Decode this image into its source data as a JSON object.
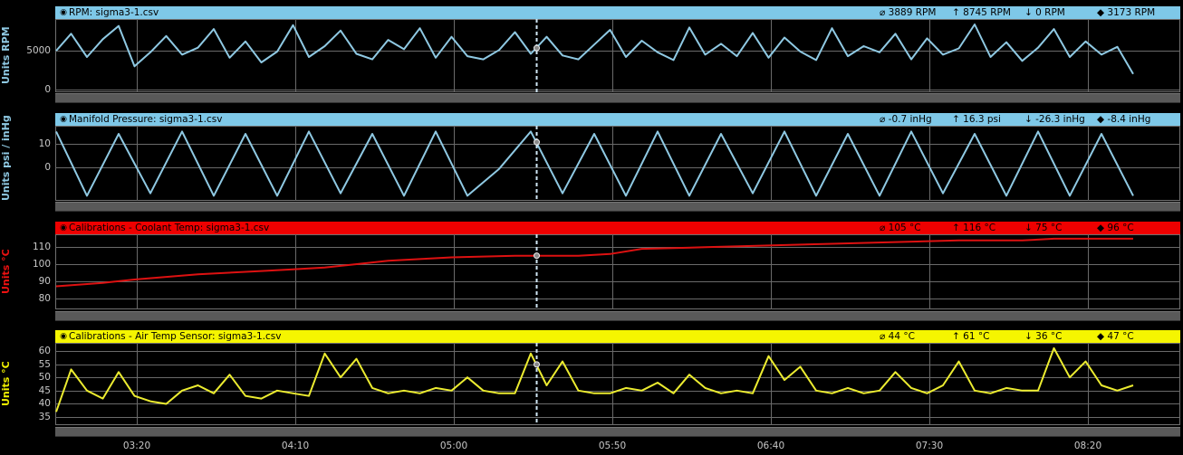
{
  "panels": [
    {
      "id": "rpm",
      "title": "RPM: sigma3-1.csv",
      "header_color": "#7ec8e8",
      "line_color": "#8fc9e3",
      "ylabel": "Units RPM",
      "ylabel_color": "#8fc9e3",
      "stats": [
        "3889 RPM",
        "8745 RPM",
        "0 RPM",
        "3173 RPM"
      ]
    },
    {
      "id": "manifold",
      "title": "Manifold Pressure: sigma3-1.csv",
      "header_color": "#7ec8e8",
      "line_color": "#8fc9e3",
      "ylabel": "Units psi / inHg",
      "ylabel_color": "#8fc9e3",
      "stats": [
        "-0.7 inHg",
        "16.3 psi",
        "-26.3 inHg",
        "-8.4 inHg"
      ]
    },
    {
      "id": "coolant",
      "title": "Calibrations - Coolant Temp: sigma3-1.csv",
      "header_color": "#ee0000",
      "line_color": "#dd1111",
      "ylabel": "Units °C",
      "ylabel_color": "#ee1111",
      "stats": [
        "105 °C",
        "116 °C",
        "75 °C",
        "96 °C"
      ]
    },
    {
      "id": "airtemp",
      "title": "Calibrations - Air Temp Sensor: sigma3-1.csv",
      "header_color": "#f5f500",
      "line_color": "#ecec30",
      "ylabel": "Units °C",
      "ylabel_color": "#f0f000",
      "stats": [
        "44 °C",
        "61 °C",
        "36 °C",
        "47 °C"
      ]
    }
  ],
  "x_ticks": [
    "03:20",
    "04:10",
    "05:00",
    "05:50",
    "06:40",
    "07:30",
    "08:20"
  ],
  "chart_data": [
    {
      "type": "line",
      "title": "RPM: sigma3-1.csv",
      "ylabel": "Units RPM",
      "y_ticks": [
        0,
        5000
      ],
      "ylim": [
        0,
        8745
      ],
      "x": [
        "02:55",
        "03:00",
        "03:05",
        "03:10",
        "03:15",
        "03:20",
        "03:25",
        "03:30",
        "03:35",
        "03:40",
        "03:45",
        "03:50",
        "03:55",
        "04:00",
        "04:05",
        "04:10",
        "04:15",
        "04:20",
        "04:25",
        "04:30",
        "04:35",
        "04:40",
        "04:45",
        "04:50",
        "04:55",
        "05:00",
        "05:05",
        "05:10",
        "05:15",
        "05:20",
        "05:25",
        "05:30",
        "05:35",
        "05:40",
        "05:45",
        "05:50",
        "05:55",
        "06:00",
        "06:05",
        "06:10",
        "06:15",
        "06:20",
        "06:25",
        "06:30",
        "06:35",
        "06:40",
        "06:45",
        "06:50",
        "06:55",
        "07:00",
        "07:05",
        "07:10",
        "07:15",
        "07:20",
        "07:25",
        "07:30",
        "07:35",
        "07:40",
        "07:45",
        "07:50",
        "07:55",
        "08:00",
        "08:05",
        "08:10",
        "08:15",
        "08:20",
        "08:25",
        "08:30",
        "08:35"
      ],
      "series": [
        {
          "values": [
            5000,
            7200,
            4200,
            6500,
            8200,
            3000,
            4800,
            6900,
            4500,
            5400,
            7800,
            4100,
            6200,
            3500,
            4900,
            8300,
            4200,
            5600,
            7600,
            4600,
            3900,
            6400,
            5200,
            7900,
            4100,
            6800,
            4300,
            3889,
            5100,
            7400,
            4600,
            6800,
            4400,
            3900,
            5800,
            7700,
            4200,
            6300,
            4800,
            3800,
            8000,
            4500,
            5900,
            4300,
            7300,
            4100,
            6700,
            4900,
            3800,
            7900,
            4300,
            5600,
            4800,
            7200,
            3900,
            6600,
            4500,
            5300,
            8400,
            4200,
            6100,
            3700,
            5400,
            7800,
            4200,
            6200,
            4500,
            5500,
            2000
          ]
        }
      ]
    },
    {
      "type": "line",
      "title": "Manifold Pressure: sigma3-1.csv",
      "ylabel": "Units psi / inHg",
      "y_ticks": [
        0,
        10
      ],
      "ylim": [
        -13,
        16.3
      ],
      "x": [
        "02:55",
        "03:05",
        "03:15",
        "03:25",
        "03:35",
        "03:45",
        "03:55",
        "04:05",
        "04:15",
        "04:25",
        "04:35",
        "04:45",
        "04:55",
        "05:05",
        "05:15",
        "05:25",
        "05:35",
        "05:45",
        "05:55",
        "06:05",
        "06:15",
        "06:25",
        "06:35",
        "06:45",
        "06:55",
        "07:05",
        "07:15",
        "07:25",
        "07:35",
        "07:45",
        "07:55",
        "08:05",
        "08:15",
        "08:25",
        "08:35"
      ],
      "series": [
        {
          "values": [
            15,
            -12,
            14,
            -11,
            15,
            -12,
            14,
            -12,
            15,
            -11,
            14,
            -12,
            15,
            -12,
            -0.7,
            15,
            -11,
            14,
            -12,
            15,
            -12,
            14,
            -11,
            15,
            -12,
            14,
            -12,
            15,
            -11,
            14,
            -12,
            15,
            -12,
            14,
            -12
          ]
        }
      ]
    },
    {
      "type": "line",
      "title": "Calibrations - Coolant Temp: sigma3-1.csv",
      "ylabel": "Units °C",
      "y_ticks": [
        80,
        90,
        100,
        110
      ],
      "ylim": [
        75,
        116
      ],
      "x": [
        "02:55",
        "03:10",
        "03:20",
        "03:40",
        "04:00",
        "04:10",
        "04:20",
        "04:40",
        "05:00",
        "05:20",
        "05:30",
        "05:40",
        "05:50",
        "06:00",
        "06:20",
        "06:40",
        "07:00",
        "07:20",
        "07:40",
        "08:00",
        "08:10",
        "08:20",
        "08:35"
      ],
      "series": [
        {
          "values": [
            87,
            89,
            91,
            94,
            96,
            97,
            98,
            102,
            104,
            105,
            105,
            105,
            106,
            109,
            110,
            111,
            112,
            113,
            114,
            114,
            115,
            115,
            115
          ]
        }
      ]
    },
    {
      "type": "line",
      "title": "Calibrations - Air Temp Sensor: sigma3-1.csv",
      "ylabel": "Units °C",
      "y_ticks": [
        35,
        40,
        45,
        50,
        55,
        60
      ],
      "ylim": [
        33,
        62
      ],
      "x": [
        "02:55",
        "03:00",
        "03:05",
        "03:10",
        "03:15",
        "03:20",
        "03:25",
        "03:30",
        "03:35",
        "03:40",
        "03:45",
        "03:50",
        "03:55",
        "04:00",
        "04:05",
        "04:10",
        "04:15",
        "04:20",
        "04:25",
        "04:30",
        "04:35",
        "04:40",
        "04:45",
        "04:50",
        "04:55",
        "05:00",
        "05:05",
        "05:10",
        "05:15",
        "05:20",
        "05:25",
        "05:30",
        "05:35",
        "05:40",
        "05:45",
        "05:50",
        "05:55",
        "06:00",
        "06:05",
        "06:10",
        "06:15",
        "06:20",
        "06:25",
        "06:30",
        "06:35",
        "06:40",
        "06:45",
        "06:50",
        "06:55",
        "07:00",
        "07:05",
        "07:10",
        "07:15",
        "07:20",
        "07:25",
        "07:30",
        "07:35",
        "07:40",
        "07:45",
        "07:50",
        "07:55",
        "08:00",
        "08:05",
        "08:10",
        "08:15",
        "08:20",
        "08:25",
        "08:30",
        "08:35"
      ],
      "series": [
        {
          "values": [
            37,
            53,
            45,
            42,
            52,
            43,
            41,
            40,
            45,
            47,
            44,
            51,
            43,
            42,
            45,
            44,
            43,
            59,
            50,
            57,
            46,
            44,
            45,
            44,
            46,
            45,
            50,
            45,
            44,
            44,
            59,
            47,
            56,
            45,
            44,
            44,
            46,
            45,
            48,
            44,
            51,
            46,
            44,
            45,
            44,
            58,
            49,
            54,
            45,
            44,
            46,
            44,
            45,
            52,
            46,
            44,
            47,
            56,
            45,
            44,
            46,
            45,
            45,
            61,
            50,
            56,
            47,
            45,
            47
          ]
        }
      ]
    }
  ]
}
